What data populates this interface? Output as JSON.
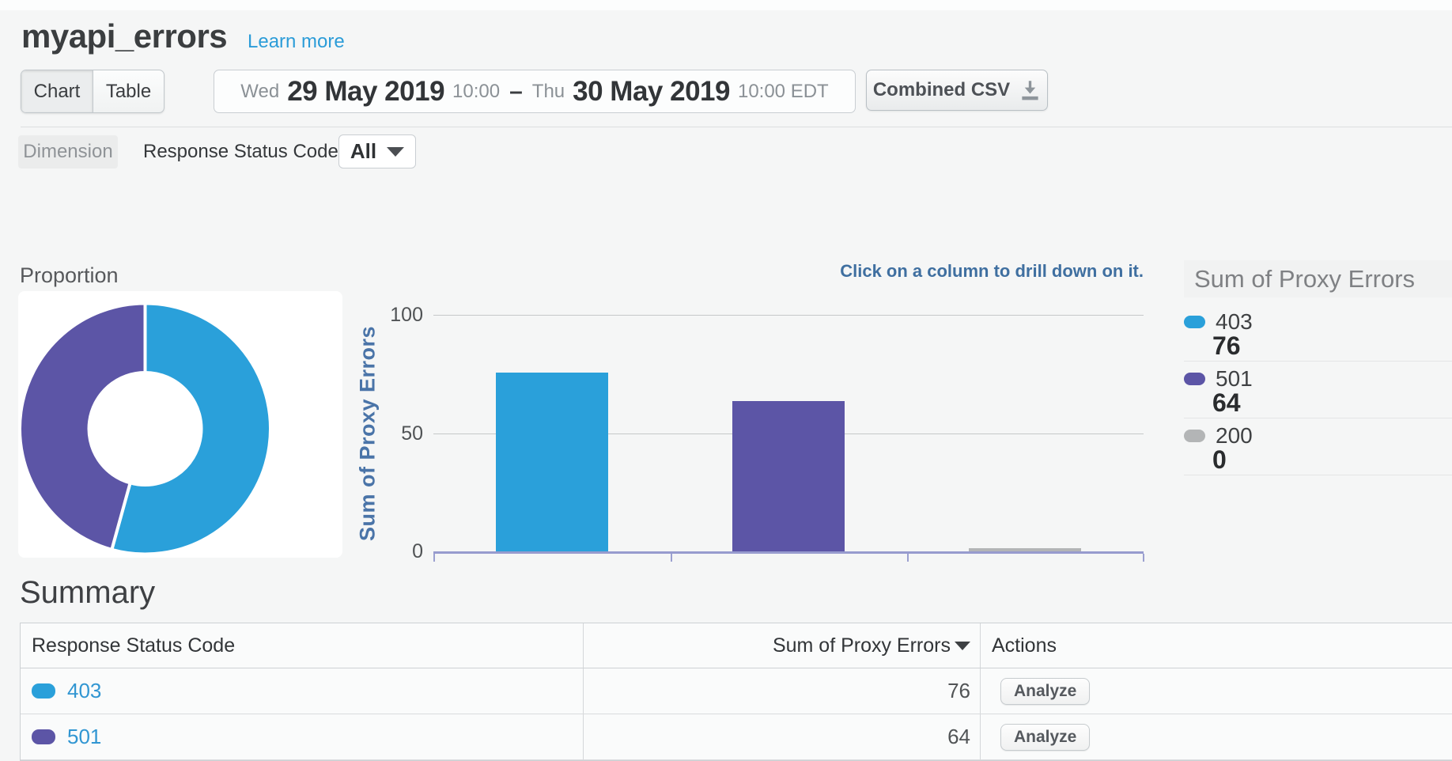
{
  "header": {
    "title": "myapi_errors",
    "learn_more": "Learn more"
  },
  "toolbar": {
    "view_toggle": {
      "chart_label": "Chart",
      "table_label": "Table",
      "active": "Chart"
    },
    "date_range": {
      "start_day": "Wed",
      "start_date": "29 May 2019",
      "start_time": "10:00",
      "separator": "–",
      "end_day": "Thu",
      "end_date": "30 May 2019",
      "end_time": "10:00 EDT"
    },
    "export_label": "Combined CSV"
  },
  "dimension_bar": {
    "label": "Dimension",
    "dimension_name": "Response Status Code",
    "filter_value": "All"
  },
  "proportion": {
    "title": "Proportion"
  },
  "bar_chart_hint": "Click on a column to drill down on it.",
  "chart_data": [
    {
      "type": "pie",
      "title": "Proportion",
      "labels": [
        "403",
        "501"
      ],
      "values": [
        76,
        64
      ],
      "colors": [
        "#2aa0da",
        "#5c55a6"
      ],
      "donut": true
    },
    {
      "type": "bar",
      "categories": [
        "403",
        "501",
        "200"
      ],
      "values": [
        76,
        64,
        0
      ],
      "colors": [
        "#2aa0da",
        "#5c55a6",
        "#b3b5b6"
      ],
      "title": "",
      "xlabel": "",
      "ylabel": "Sum of Proxy Errors",
      "ylim": [
        0,
        100
      ],
      "yticks": [
        0,
        50,
        100
      ],
      "grid": true,
      "legend_position": "right"
    }
  ],
  "legend": {
    "title": "Sum of Proxy Errors",
    "items": [
      {
        "label": "403",
        "value": "76",
        "color": "#2aa0da"
      },
      {
        "label": "501",
        "value": "64",
        "color": "#5c55a6"
      },
      {
        "label": "200",
        "value": "0",
        "color": "#b3b5b6"
      }
    ]
  },
  "summary": {
    "title": "Summary",
    "columns": [
      "Response Status Code",
      "Sum of Proxy Errors",
      "Actions"
    ],
    "rows": [
      {
        "code": "403",
        "value": "76",
        "action": "Analyze",
        "color": "#2aa0da"
      },
      {
        "code": "501",
        "value": "64",
        "action": "Analyze",
        "color": "#5c55a6"
      }
    ]
  }
}
